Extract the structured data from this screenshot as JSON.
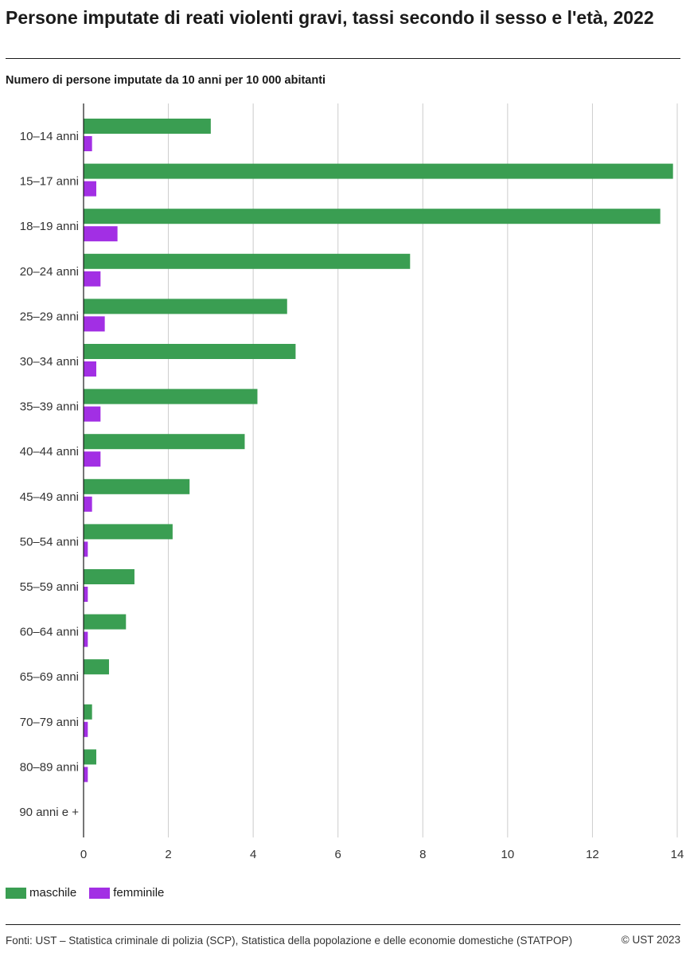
{
  "header": {
    "title": "Persone imputate di reati violenti gravi, tassi secondo il sesso e l'età, 2022",
    "subtitle": "Numero di persone imputate da 10 anni per 10 000 abitanti"
  },
  "legend": {
    "male_label": "maschile",
    "female_label": "femminile"
  },
  "footer": {
    "source": "Fonti: UST – Statistica criminale di polizia (SCP), Statistica della popolazione e delle economie domestiche (STATPOP)",
    "copyright": "© UST 2023"
  },
  "colors": {
    "male": "#3a9e52",
    "female": "#a22fe4",
    "grid": "#cccccc",
    "axis": "#1a1a1a"
  },
  "chart_data": {
    "type": "bar",
    "orientation": "horizontal",
    "title": "Persone imputate di reati violenti gravi, tassi secondo il sesso e l'età, 2022",
    "xlabel": "Numero di persone imputate da 10 anni per 10 000 abitanti",
    "ylabel": "",
    "xlim": [
      0,
      14
    ],
    "xticks": [
      0,
      2,
      4,
      6,
      8,
      10,
      12,
      14
    ],
    "grid": true,
    "legend_position": "bottom-left",
    "categories": [
      "10–14 anni",
      "15–17 anni",
      "18–19 anni",
      "20–24 anni",
      "25–29 anni",
      "30–34 anni",
      "35–39 anni",
      "40–44 anni",
      "45–49 anni",
      "50–54 anni",
      "55–59 anni",
      "60–64 anni",
      "65–69 anni",
      "70–79 anni",
      "80–89 anni",
      "90 anni e +"
    ],
    "series": [
      {
        "name": "maschile",
        "values": [
          3.0,
          13.9,
          13.6,
          7.7,
          4.8,
          5.0,
          4.1,
          3.8,
          2.5,
          2.1,
          1.2,
          1.0,
          0.6,
          0.2,
          0.3,
          0.0
        ]
      },
      {
        "name": "femminile",
        "values": [
          0.2,
          0.3,
          0.8,
          0.4,
          0.5,
          0.3,
          0.4,
          0.4,
          0.2,
          0.1,
          0.1,
          0.1,
          0.0,
          0.1,
          0.1,
          0.0
        ]
      }
    ]
  }
}
